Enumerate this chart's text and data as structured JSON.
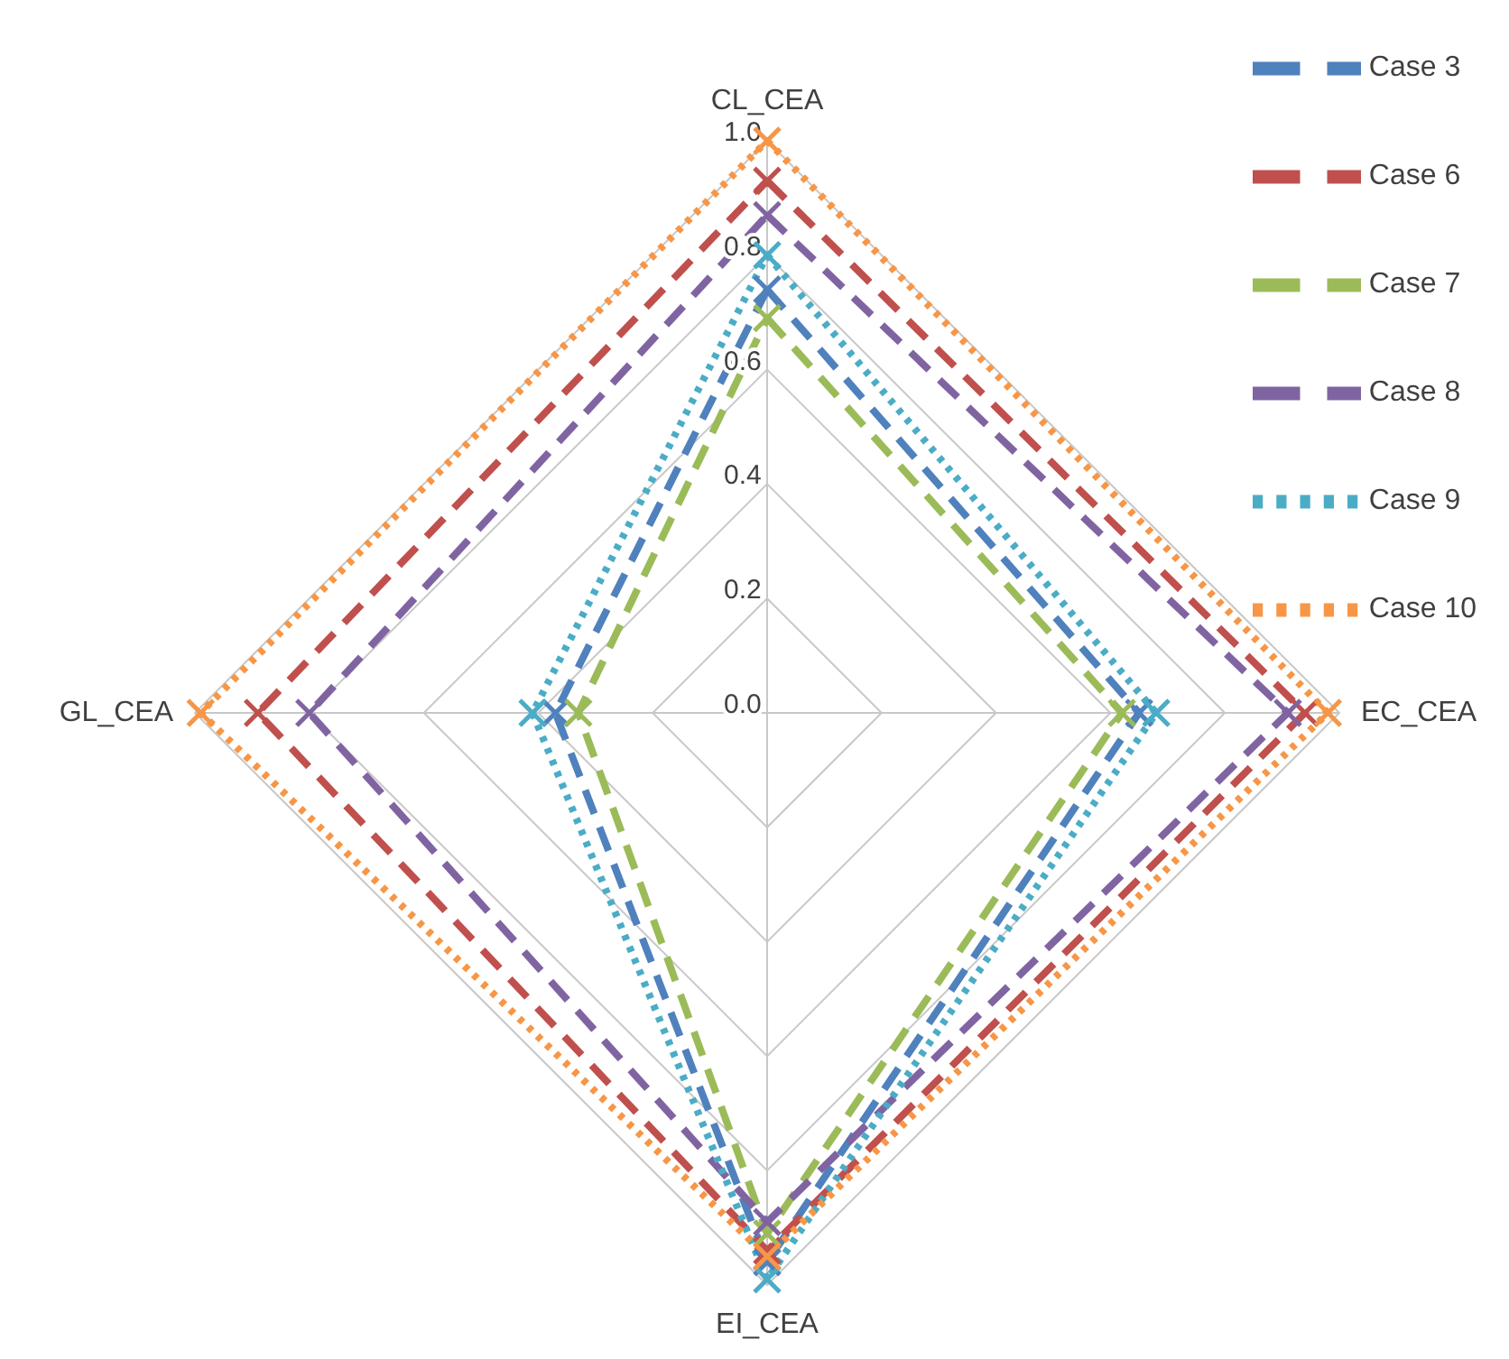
{
  "chart_data": {
    "type": "radar",
    "categories": [
      "CL_CEA",
      "EC_CEA",
      "EI_CEA",
      "GL_CEA"
    ],
    "ylim": [
      0,
      1
    ],
    "yticks": [
      {
        "value": 0,
        "label": "0.0"
      },
      {
        "value": 0.2,
        "label": "0.2"
      },
      {
        "value": 0.4,
        "label": "0.4"
      },
      {
        "value": 0.6,
        "label": "0.6"
      },
      {
        "value": 0.8,
        "label": "0.8"
      },
      {
        "value": 1,
        "label": "1.0"
      }
    ],
    "grid": true,
    "legend": "top right",
    "marker": "cross",
    "series": [
      {
        "name": "Case 3",
        "color": "#4f81bd",
        "line_style": "dashed",
        "values": [
          0.74,
          0.65,
          0.96,
          0.37
        ]
      },
      {
        "name": "Case 6",
        "color": "#c0504d",
        "line_style": "dashed",
        "values": [
          0.93,
          0.94,
          0.94,
          0.89
        ]
      },
      {
        "name": "Case 7",
        "color": "#9bbb59",
        "line_style": "dashed",
        "values": [
          0.69,
          0.62,
          0.91,
          0.33
        ]
      },
      {
        "name": "Case 8",
        "color": "#8064a2",
        "line_style": "dashed",
        "values": [
          0.87,
          0.91,
          0.89,
          0.8
        ]
      },
      {
        "name": "Case 9",
        "color": "#4bacc6",
        "line_style": "dotted",
        "values": [
          0.8,
          0.68,
          0.99,
          0.41
        ]
      },
      {
        "name": "Case 10",
        "color": "#f79646",
        "line_style": "dotted",
        "values": [
          1,
          0.98,
          0.95,
          0.99
        ]
      }
    ]
  }
}
